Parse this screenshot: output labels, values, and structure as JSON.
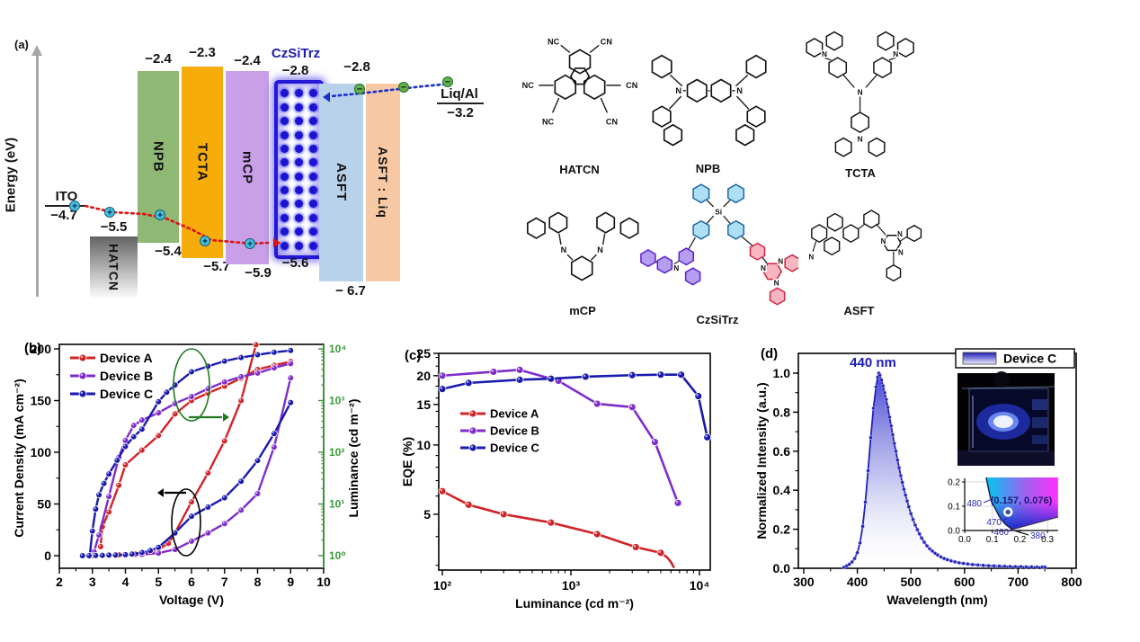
{
  "figure": {
    "background": "#ffffff",
    "panel_labels": {
      "a": "(a)",
      "b": "(b)",
      "c": "(c)",
      "d": "(d)"
    }
  },
  "energy_diagram": {
    "axis_label": "Energy (eV)",
    "carrier_symbols": {
      "hole": "+",
      "electron": "−"
    },
    "hole_path_color": "#e01010",
    "electron_path_color": "#1a2fd0",
    "hole_marker_color": "#45c0dd",
    "electron_marker_color": "#63b04f",
    "electrodes": {
      "left": {
        "name": "ITO",
        "level": "−4.7"
      },
      "right": {
        "name": "Liq/Al",
        "level": "−3.2"
      }
    },
    "layers": [
      {
        "name": "HATCN",
        "level_top": "−5.5",
        "color": "#6a6a6a"
      },
      {
        "name": "NPB",
        "lumo": "−2.4",
        "homo": "−5.4",
        "color": "#8eb873"
      },
      {
        "name": "TCTA",
        "lumo": "−2.3",
        "homo": "−5.7",
        "color": "#f6ad0b"
      },
      {
        "name": "mCP",
        "lumo": "−2.4",
        "homo": "−5.9",
        "color": "#c9a0e8"
      },
      {
        "name": "CzSiTrz",
        "lumo": "−2.8",
        "homo": "−5.6",
        "color": "#ffffff",
        "border_color": "#2517d6"
      },
      {
        "name": "ASFT",
        "lumo": "−2.8",
        "homo": "− 6.7",
        "color": "#b9d2ec"
      },
      {
        "name": "ASFT : Liq",
        "color": "#f6c9a4"
      }
    ]
  },
  "structures": {
    "items": [
      {
        "name": "HATCN",
        "atoms": [
          "NC",
          "CN",
          "NC",
          "CN",
          "NC",
          "CN"
        ]
      },
      {
        "name": "NPB",
        "atoms": [
          "N",
          "N"
        ]
      },
      {
        "name": "TCTA",
        "atoms": [
          "N",
          "N",
          "N",
          "N"
        ]
      },
      {
        "name": "mCP",
        "atoms": [
          "N",
          "N"
        ]
      },
      {
        "name": "CzSiTrz",
        "atoms": [
          "Si",
          "N",
          "N",
          "N",
          "N"
        ]
      },
      {
        "name": "ASFT",
        "atoms": [
          "N",
          "N",
          "N",
          "N"
        ]
      }
    ]
  },
  "chart_data": [
    {
      "id": "jvl",
      "panel": "b",
      "type": "line",
      "xlabel": "Voltage (V)",
      "ylabel_left": "Current Density (mA cm⁻²)",
      "ylabel_right": "Luminance (cd m⁻²)",
      "xlim": [
        2,
        10
      ],
      "ylim_left": [
        -12,
        204
      ],
      "ylim_right_log": [
        1,
        10000
      ],
      "x_ticks": [
        2,
        3,
        4,
        5,
        6,
        7,
        8,
        9,
        10
      ],
      "y_ticks_left": [
        0,
        50,
        100,
        150,
        200
      ],
      "y_ticks_right": [
        "10⁰",
        "10¹",
        "10²",
        "10³",
        "10⁴"
      ],
      "right_axis_color": "#3a9a3a",
      "legend_position": "top-left",
      "axis_arrows": {
        "luminance": "right",
        "current_density": "left"
      },
      "series": [
        {
          "name": "Device A",
          "color": "#d02428",
          "current_density": [
            [
              3.0,
              0
            ],
            [
              3.3,
              0.3
            ],
            [
              3.5,
              0.5
            ],
            [
              3.8,
              0.8
            ],
            [
              4.0,
              1
            ],
            [
              4.3,
              1.5
            ],
            [
              4.5,
              2.2
            ],
            [
              4.8,
              3.5
            ],
            [
              5.0,
              6
            ],
            [
              5.3,
              12
            ],
            [
              5.5,
              22
            ],
            [
              6.0,
              52
            ],
            [
              6.5,
              80
            ],
            [
              7.0,
              111
            ],
            [
              7.5,
              150
            ],
            [
              7.95,
              204
            ]
          ],
          "luminance": [
            [
              3.25,
              1.5
            ],
            [
              3.3,
              3.6
            ],
            [
              3.5,
              7
            ],
            [
              3.8,
              23
            ],
            [
              4.0,
              57
            ],
            [
              4.5,
              110
            ],
            [
              5.0,
              210
            ],
            [
              5.5,
              550
            ],
            [
              6.0,
              1000
            ],
            [
              6.5,
              1400
            ],
            [
              7.0,
              1900
            ],
            [
              7.5,
              2700
            ],
            [
              8.0,
              4000
            ],
            [
              8.5,
              4800
            ],
            [
              9.0,
              5700
            ]
          ]
        },
        {
          "name": "Device B",
          "color": "#7f2ccc",
          "current_density": [
            [
              3.0,
              0
            ],
            [
              3.5,
              0.3
            ],
            [
              4.0,
              0.6
            ],
            [
              4.5,
              1.2
            ],
            [
              5.0,
              2.5
            ],
            [
              5.5,
              6
            ],
            [
              6.0,
              14
            ],
            [
              6.5,
              22
            ],
            [
              7.0,
              31
            ],
            [
              7.5,
              44
            ],
            [
              8.0,
              60
            ],
            [
              8.5,
              105
            ],
            [
              9.0,
              172
            ]
          ],
          "luminance": [
            [
              3.05,
              1.2
            ],
            [
              3.2,
              2.5
            ],
            [
              3.5,
              14
            ],
            [
              3.8,
              80
            ],
            [
              4.0,
              170
            ],
            [
              4.25,
              330
            ],
            [
              4.5,
              420
            ],
            [
              5.0,
              580
            ],
            [
              5.5,
              880
            ],
            [
              6.0,
              1200
            ],
            [
              6.5,
              1700
            ],
            [
              7.0,
              2300
            ],
            [
              7.5,
              2900
            ],
            [
              8.0,
              3400
            ],
            [
              8.5,
              4300
            ],
            [
              9.0,
              5200
            ]
          ]
        },
        {
          "name": "Device C",
          "color": "#1a1aae",
          "current_density": [
            [
              2.7,
              0
            ],
            [
              2.9,
              0
            ],
            [
              3.1,
              0.2
            ],
            [
              3.3,
              0.3
            ],
            [
              3.5,
              0.5
            ],
            [
              3.7,
              0.7
            ],
            [
              4.0,
              1
            ],
            [
              4.2,
              1.5
            ],
            [
              4.5,
              3
            ],
            [
              4.75,
              5
            ],
            [
              5.0,
              8
            ],
            [
              5.5,
              22
            ],
            [
              6.0,
              38
            ],
            [
              6.5,
              47
            ],
            [
              7.0,
              56
            ],
            [
              7.5,
              72
            ],
            [
              8.0,
              92
            ],
            [
              8.5,
              118
            ],
            [
              9.0,
              148
            ]
          ],
          "luminance": [
            [
              2.92,
              1
            ],
            [
              3.0,
              3
            ],
            [
              3.1,
              8
            ],
            [
              3.2,
              15
            ],
            [
              3.35,
              25
            ],
            [
              3.5,
              38
            ],
            [
              3.75,
              70
            ],
            [
              4.0,
              130
            ],
            [
              4.25,
              200
            ],
            [
              4.5,
              280
            ],
            [
              5.0,
              950
            ],
            [
              5.25,
              1450
            ],
            [
              5.5,
              2000
            ],
            [
              6.0,
              3600
            ],
            [
              6.5,
              4600
            ],
            [
              7.0,
              5800
            ],
            [
              7.5,
              6800
            ],
            [
              8.0,
              7700
            ],
            [
              8.5,
              8600
            ],
            [
              9.0,
              9300
            ]
          ]
        }
      ]
    },
    {
      "id": "eqe",
      "panel": "c",
      "type": "line",
      "xlabel": "Luminance (cd m⁻²)",
      "ylabel": "EQE (%)",
      "x_scale": "log",
      "y_scale": "log",
      "xlim": [
        93,
        12700
      ],
      "ylim": [
        2.85,
        25
      ],
      "x_ticks": [
        "10²",
        "10³",
        "10⁴"
      ],
      "y_ticks": [
        5,
        10,
        15,
        20,
        25
      ],
      "legend_position": "middle-left",
      "series": [
        {
          "name": "Device A",
          "color": "#d02428",
          "points": [
            [
              100,
              6.3
            ],
            [
              160,
              5.5
            ],
            [
              300,
              5.0
            ],
            [
              700,
              4.6
            ],
            [
              1600,
              4.1
            ],
            [
              3200,
              3.6
            ],
            [
              5000,
              3.4
            ]
          ],
          "tail": [
            [
              5600,
              3.25
            ],
            [
              6000,
              3.1
            ],
            [
              6300,
              2.95
            ]
          ]
        },
        {
          "name": "Device B",
          "color": "#7f2ccc",
          "points": [
            [
              100,
              20.0
            ],
            [
              250,
              20.8
            ],
            [
              400,
              21.2
            ],
            [
              800,
              19.0
            ],
            [
              1600,
              15.1
            ],
            [
              3000,
              14.6
            ],
            [
              4500,
              10.3
            ],
            [
              6800,
              5.6
            ]
          ]
        },
        {
          "name": "Device C",
          "color": "#1a1aae",
          "points": [
            [
              100,
              17.5
            ],
            [
              160,
              18.6
            ],
            [
              400,
              19.2
            ],
            [
              700,
              19.4
            ],
            [
              1300,
              19.8
            ],
            [
              3000,
              20.1
            ],
            [
              5000,
              20.2
            ],
            [
              7200,
              20.2
            ],
            [
              9800,
              16.3
            ],
            [
              11500,
              10.8
            ]
          ]
        }
      ]
    },
    {
      "id": "el_spectrum",
      "panel": "d",
      "type": "area",
      "xlabel": "Wavelength (nm)",
      "ylabel": "Normalized Intensity (a.u.)",
      "xlim": [
        290,
        808
      ],
      "ylim": [
        0,
        1.1
      ],
      "x_ticks": [
        300,
        400,
        500,
        600,
        700,
        800
      ],
      "y_ticks": [
        "0.0",
        "0.2",
        "0.4",
        "0.6",
        "0.8",
        "1.0"
      ],
      "peak_label": "440 nm",
      "legend": "Device C",
      "curve_color": "#2222b8",
      "points": [
        [
          375,
          0.005
        ],
        [
          380,
          0.012
        ],
        [
          385,
          0.02
        ],
        [
          390,
          0.032
        ],
        [
          395,
          0.05
        ],
        [
          400,
          0.08
        ],
        [
          405,
          0.13
        ],
        [
          410,
          0.215
        ],
        [
          415,
          0.34
        ],
        [
          420,
          0.5
        ],
        [
          425,
          0.67
        ],
        [
          430,
          0.82
        ],
        [
          435,
          0.93
        ],
        [
          438,
          0.98
        ],
        [
          440,
          1.0
        ],
        [
          442,
          0.99
        ],
        [
          445,
          0.965
        ],
        [
          448,
          0.935
        ],
        [
          451,
          0.9
        ],
        [
          454,
          0.865
        ],
        [
          457,
          0.825
        ],
        [
          460,
          0.775
        ],
        [
          463,
          0.73
        ],
        [
          466,
          0.685
        ],
        [
          469,
          0.64
        ],
        [
          472,
          0.6
        ],
        [
          475,
          0.555
        ],
        [
          478,
          0.515
        ],
        [
          481,
          0.475
        ],
        [
          484,
          0.44
        ],
        [
          487,
          0.405
        ],
        [
          490,
          0.375
        ],
        [
          493,
          0.345
        ],
        [
          496,
          0.315
        ],
        [
          500,
          0.28
        ],
        [
          504,
          0.25
        ],
        [
          508,
          0.222
        ],
        [
          512,
          0.198
        ],
        [
          516,
          0.176
        ],
        [
          520,
          0.155
        ],
        [
          525,
          0.133
        ],
        [
          530,
          0.115
        ],
        [
          535,
          0.1
        ],
        [
          540,
          0.088
        ],
        [
          545,
          0.077
        ],
        [
          550,
          0.068
        ],
        [
          556,
          0.058
        ],
        [
          562,
          0.05
        ],
        [
          568,
          0.044
        ],
        [
          575,
          0.038
        ],
        [
          582,
          0.033
        ],
        [
          590,
          0.028
        ],
        [
          598,
          0.025
        ],
        [
          606,
          0.022
        ],
        [
          615,
          0.019
        ],
        [
          625,
          0.017
        ],
        [
          635,
          0.015
        ],
        [
          645,
          0.013
        ],
        [
          655,
          0.012
        ],
        [
          665,
          0.011
        ],
        [
          675,
          0.01
        ],
        [
          685,
          0.009
        ],
        [
          695,
          0.008
        ],
        [
          705,
          0.008
        ],
        [
          715,
          0.007
        ],
        [
          725,
          0.007
        ],
        [
          735,
          0.006
        ],
        [
          745,
          0.006
        ],
        [
          750,
          0.006
        ]
      ],
      "cie_inset": {
        "coords_label": "(0.157, 0.076)",
        "point": [
          0.157,
          0.076
        ],
        "x_ticks": [
          "0.0",
          "0.1",
          "0.2",
          "0.3"
        ],
        "y_ticks": [
          "0.0",
          "0.1",
          "0.2"
        ],
        "wavelength_labels": [
          "480",
          "470",
          "460",
          "380"
        ]
      }
    }
  ]
}
